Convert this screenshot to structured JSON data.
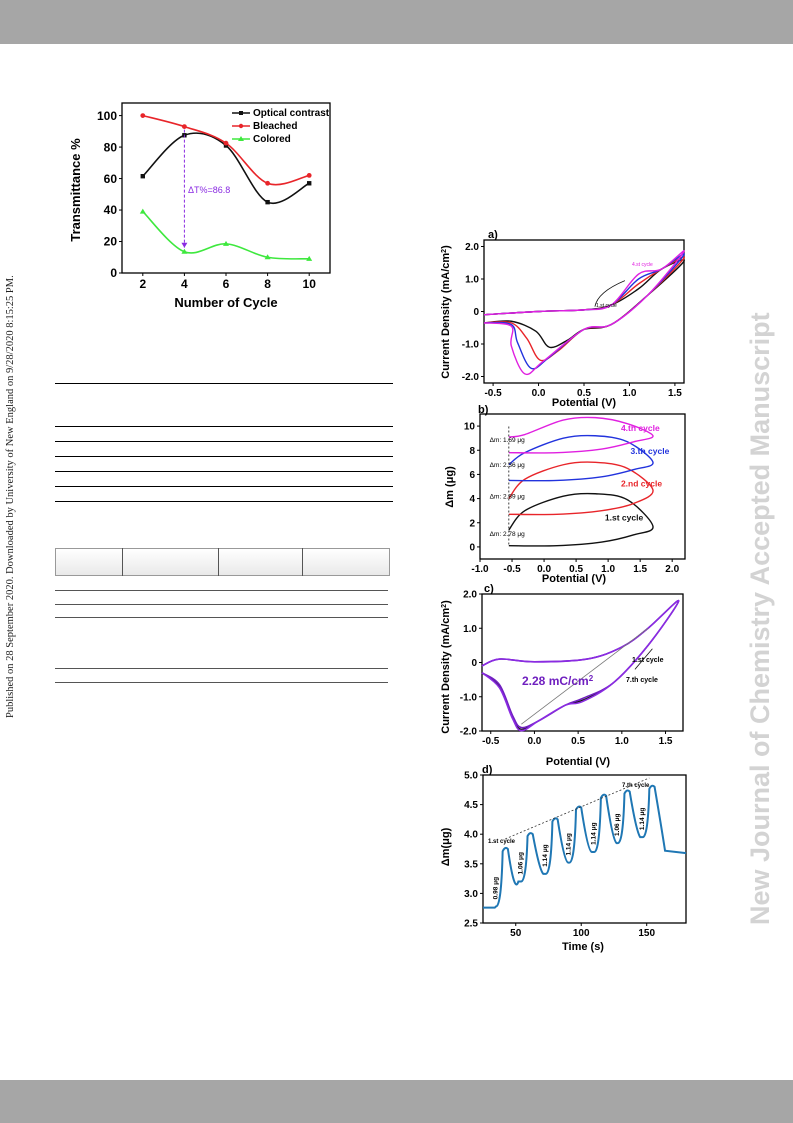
{
  "side_note": "Published on 28 September 2020. Downloaded by University of New England on 9/28/2020 8:15:25 PM.",
  "watermark": "New Journal of Chemistry Accepted Manuscript",
  "colors": {
    "black": "#111111",
    "red": "#e8252a",
    "green": "#3ee83e",
    "blue": "#2233dd",
    "magenta": "#e020e0",
    "purple": "#6f1fbf",
    "teal": "#1f77b4",
    "violet": "#8a2be2"
  },
  "chart_data": [
    {
      "type": "line",
      "xlabel": "Number of Cycle",
      "ylabel": "Transmittance %",
      "xlim": [
        1,
        11
      ],
      "ylim": [
        0,
        108
      ],
      "xticks": [
        "2",
        "4",
        "6",
        "8",
        "10"
      ],
      "yticks": [
        "0",
        "20",
        "40",
        "60",
        "80",
        "100"
      ],
      "x": [
        2,
        4,
        6,
        8,
        10
      ],
      "series": [
        {
          "name": "Optical contrast",
          "values": [
            61.5,
            87.5,
            81,
            45,
            57
          ],
          "color": "#111111"
        },
        {
          "name": "Bleached",
          "values": [
            100,
            93,
            82.5,
            57,
            62
          ],
          "color": "#e8252a"
        },
        {
          "name": "Colored",
          "values": [
            39,
            13.5,
            18.5,
            10,
            9
          ],
          "color": "#3ee83e"
        }
      ],
      "annotation": "ΔT%=86.8",
      "legend": "top-right"
    },
    {
      "type": "line",
      "panel": "a)",
      "xlabel": "Potential (V)",
      "ylabel": "Current Density (mA/cm²)",
      "xlim": [
        -0.6,
        1.6
      ],
      "ylim": [
        -2.2,
        2.2
      ],
      "xticks": [
        "-0.5",
        "0.0",
        "0.5",
        "1.0",
        "1.5"
      ],
      "yticks": [
        "-2.0",
        "-1.0",
        "0",
        "1.0",
        "2.0"
      ],
      "annotations": [
        "4.st cycle",
        "1.st cycle"
      ]
    },
    {
      "type": "line",
      "panel": "b)",
      "xlabel": "Potential (V)",
      "ylabel": "Δm (μg)",
      "xlim": [
        -1.0,
        2.2
      ],
      "ylim": [
        -1,
        11
      ],
      "xticks": [
        "-1.0",
        "-0.5",
        "0.0",
        "0.5",
        "1.0",
        "1.5",
        "2.0"
      ],
      "yticks": [
        "0",
        "2",
        "4",
        "6",
        "8",
        "10"
      ],
      "series": [
        {
          "name": "1.st cycle",
          "delta": "Δm: 2.78 μg",
          "color": "#111111"
        },
        {
          "name": "2.nd cycle",
          "delta": "Δm: 2.89 μg",
          "color": "#e8252a"
        },
        {
          "name": "3.th cycle",
          "delta": "Δm: 2.36 μg",
          "color": "#2233dd"
        },
        {
          "name": "4.th cycle",
          "delta": "Δm: 1.69 μg",
          "color": "#e020e0"
        }
      ]
    },
    {
      "type": "line",
      "panel": "c)",
      "xlabel": "Potential (V)",
      "ylabel": "Current Density (mA/cm²)",
      "xlim": [
        -0.6,
        1.7
      ],
      "ylim": [
        -2.0,
        2.0
      ],
      "xticks": [
        "-0.5",
        "0.0",
        "0.5",
        "1.0",
        "1.5"
      ],
      "yticks": [
        "-2.0",
        "-1.0",
        "0",
        "1.0",
        "2.0"
      ],
      "annotations": [
        "2.28 mC/cm²",
        "1.st cycle",
        "7.th cycle"
      ]
    },
    {
      "type": "line",
      "panel": "d)",
      "xlabel": "Time (s)",
      "ylabel": "Δm(μg)",
      "xlim": [
        25,
        180
      ],
      "ylim": [
        2.5,
        5.0
      ],
      "xticks": [
        "50",
        "100",
        "150"
      ],
      "yticks": [
        "2.5",
        "3.0",
        "3.5",
        "4.0",
        "4.5",
        "5.0"
      ],
      "peaks_x": [
        42,
        61,
        80,
        98,
        117,
        135,
        154
      ],
      "peaks_y": [
        3.75,
        4.0,
        4.25,
        4.45,
        4.65,
        4.72,
        4.8
      ],
      "troughs_y": [
        2.78,
        3.2,
        3.33,
        3.52,
        3.7,
        3.85,
        3.95
      ],
      "peak_labels": [
        "0.98 μg",
        "1.06 μg",
        "1.14 μg",
        "1.14 μg",
        "1.14 μg",
        "1.06 μg",
        "1.14 μg"
      ],
      "annotations": [
        "1.st cycle",
        "7.th cycle"
      ]
    }
  ]
}
